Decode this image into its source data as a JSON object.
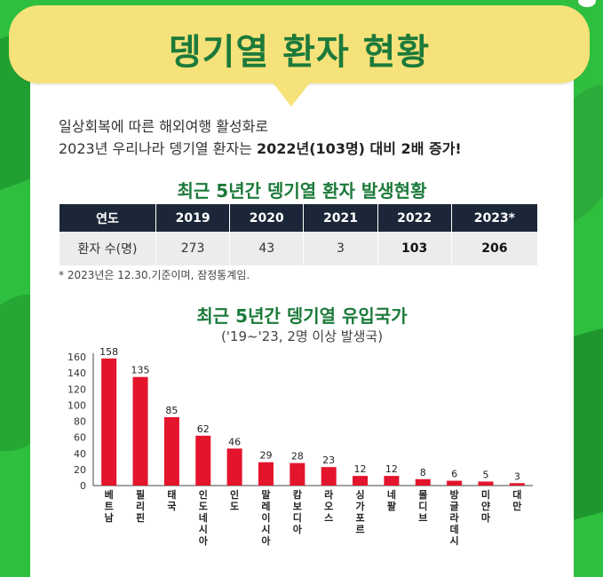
{
  "header": {
    "title": "뎅기열 환자 현황"
  },
  "intro": {
    "line1": "일상회복에 따른 해외여행 활성화로",
    "line2_prefix": "2023년 우리나라 뎅기열 환자는 ",
    "line2_bold": "2022년(103명) 대비 2배 증가!"
  },
  "table_section": {
    "title": "최근 5년간 뎅기열 환자 발생현황",
    "columns": [
      "연도",
      "2019",
      "2020",
      "2021",
      "2022",
      "2023*"
    ],
    "row": [
      "환자 수(명)",
      "273",
      "43",
      "3",
      "103",
      "206"
    ],
    "footnote": "* 2023년은 12.30.기준이며, 잠정통계임."
  },
  "chart_section": {
    "title": "최근 5년간 뎅기열 유입국가",
    "subtitle": "('19~'23, 2명 이상 발생국)"
  },
  "colors": {
    "bar": "#e3142c",
    "title_green": "#1c7a3a",
    "header_navy": "#1b2738",
    "bubble_yellow": "#f5e27a"
  },
  "chart_data": {
    "type": "bar",
    "categories": [
      "베트남",
      "필리핀",
      "태국",
      "인도네시아",
      "인도",
      "말레이시아",
      "캄보디아",
      "라오스",
      "싱가포르",
      "네팔",
      "몰디브",
      "방글라데시",
      "미얀마",
      "대만"
    ],
    "values": [
      158,
      135,
      85,
      62,
      46,
      29,
      28,
      23,
      12,
      12,
      8,
      6,
      5,
      3
    ],
    "yticks": [
      "0",
      "20",
      "40",
      "60",
      "80",
      "100",
      "120",
      "140",
      "160"
    ],
    "ylim": [
      0,
      160
    ],
    "title": "최근 5년간 뎅기열 유입국가",
    "xlabel": "",
    "ylabel": ""
  }
}
